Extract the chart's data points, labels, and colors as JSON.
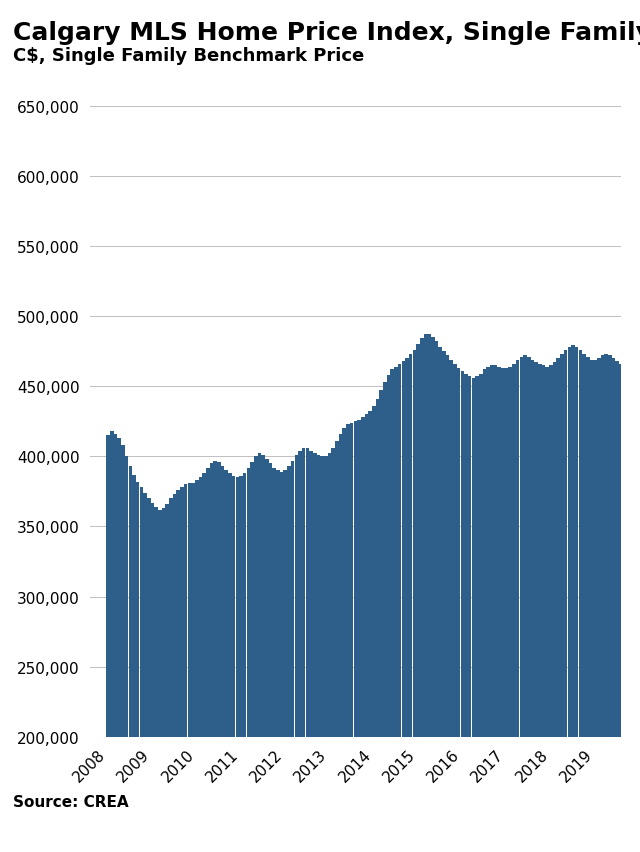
{
  "title": "Calgary MLS Home Price Index, Single Family",
  "subtitle": "C$, Single Family Benchmark Price",
  "source": "Source: CREA",
  "bar_color": "#2E5F8A",
  "background_color": "#FFFFFF",
  "ylim": [
    200000,
    650000
  ],
  "yticks": [
    200000,
    250000,
    300000,
    350000,
    400000,
    450000,
    500000,
    550000,
    600000,
    650000
  ],
  "monthly_values": [
    415000,
    418000,
    416000,
    413000,
    408000,
    400000,
    393000,
    387000,
    382000,
    378000,
    374000,
    370000,
    367000,
    364000,
    362000,
    363000,
    366000,
    370000,
    373000,
    376000,
    378000,
    380000,
    381000,
    381000,
    383000,
    385000,
    388000,
    392000,
    395000,
    397000,
    396000,
    393000,
    390000,
    388000,
    386000,
    385000,
    386000,
    388000,
    392000,
    396000,
    400000,
    402000,
    401000,
    398000,
    395000,
    392000,
    390000,
    389000,
    390000,
    393000,
    397000,
    401000,
    404000,
    406000,
    406000,
    404000,
    402000,
    401000,
    400000,
    400000,
    402000,
    406000,
    411000,
    416000,
    420000,
    423000,
    424000,
    425000,
    426000,
    428000,
    430000,
    432000,
    436000,
    441000,
    447000,
    453000,
    458000,
    462000,
    464000,
    466000,
    468000,
    470000,
    473000,
    476000,
    480000,
    484000,
    487000,
    487000,
    485000,
    482000,
    478000,
    475000,
    472000,
    469000,
    466000,
    463000,
    461000,
    459000,
    457000,
    456000,
    457000,
    459000,
    462000,
    464000,
    465000,
    465000,
    464000,
    463000,
    463000,
    464000,
    466000,
    469000,
    471000,
    472000,
    471000,
    469000,
    467000,
    466000,
    465000,
    464000,
    465000,
    467000,
    470000,
    473000,
    476000,
    478000,
    479000,
    478000,
    476000,
    473000,
    471000,
    469000,
    469000,
    470000,
    472000,
    473000,
    472000,
    470000,
    468000,
    466000,
    464000,
    462000,
    460000,
    458000
  ],
  "x_tick_years": [
    2008,
    2009,
    2010,
    2011,
    2012,
    2013,
    2014,
    2015,
    2016,
    2017,
    2018,
    2019
  ],
  "grid_color": "#C0C0C0",
  "title_fontsize": 18,
  "subtitle_fontsize": 13,
  "source_fontsize": 11,
  "base": 200000
}
